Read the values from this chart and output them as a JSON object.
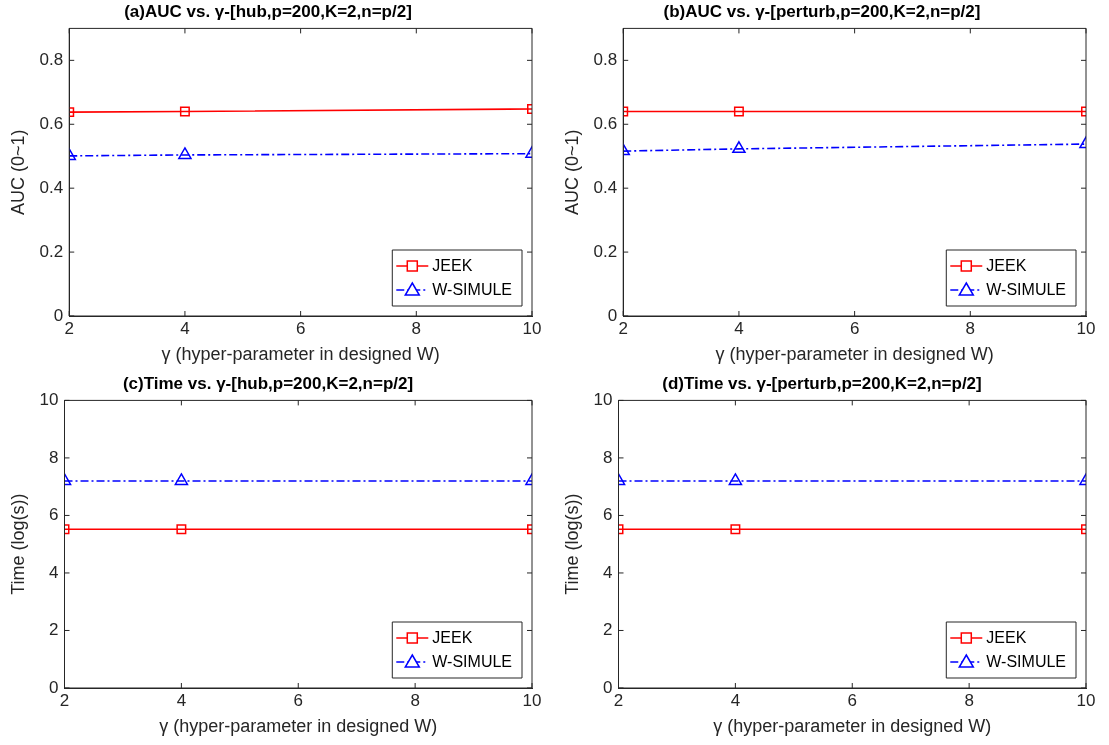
{
  "chart_data": [
    {
      "type": "line",
      "title": "(a)AUC vs. γ-[hub,p=200,K=2,n=p/2]",
      "xlabel": "γ (hyper-parameter in designed W)",
      "ylabel": "AUC (0~1)",
      "x": [
        2,
        4,
        10
      ],
      "xlim": [
        2,
        10
      ],
      "xticks": [
        2,
        4,
        6,
        8,
        10
      ],
      "ylim": [
        0,
        0.9
      ],
      "yticks": [
        0,
        0.2,
        0.4,
        0.6,
        0.8
      ],
      "grid": false,
      "legend": "bottom right",
      "series": [
        {
          "name": "JEEK",
          "color": "#ff0000",
          "marker": "square",
          "line_style": "solid",
          "values": [
            0.638,
            0.64,
            0.648
          ]
        },
        {
          "name": "W-SIMULE",
          "color": "#0000ff",
          "marker": "triangle",
          "line_style": "dashed",
          "values": [
            0.501,
            0.504,
            0.508
          ]
        }
      ]
    },
    {
      "type": "line",
      "title": "(b)AUC vs. γ-[perturb,p=200,K=2,n=p/2]",
      "xlabel": "γ (hyper-parameter in designed W)",
      "ylabel": "AUC (0~1)",
      "x": [
        2,
        4,
        10
      ],
      "xlim": [
        2,
        10
      ],
      "xticks": [
        2,
        4,
        6,
        8,
        10
      ],
      "ylim": [
        0,
        0.9
      ],
      "yticks": [
        0,
        0.2,
        0.4,
        0.6,
        0.8
      ],
      "grid": false,
      "legend": "bottom right",
      "series": [
        {
          "name": "JEEK",
          "color": "#ff0000",
          "marker": "square",
          "line_style": "solid",
          "values": [
            0.64,
            0.64,
            0.64
          ]
        },
        {
          "name": "W-SIMULE",
          "color": "#0000ff",
          "marker": "triangle",
          "line_style": "dashed",
          "values": [
            0.516,
            0.523,
            0.538
          ]
        }
      ]
    },
    {
      "type": "line",
      "title": "(c)Time vs. γ-[hub,p=200,K=2,n=p/2]",
      "xlabel": "γ (hyper-parameter in designed W)",
      "ylabel": "Time (log(s))",
      "x": [
        2,
        4,
        10
      ],
      "xlim": [
        2,
        10
      ],
      "xticks": [
        2,
        4,
        6,
        8,
        10
      ],
      "ylim": [
        0,
        10
      ],
      "yticks": [
        0,
        2,
        4,
        6,
        8,
        10
      ],
      "grid": false,
      "legend": "bottom right",
      "series": [
        {
          "name": "JEEK",
          "color": "#ff0000",
          "marker": "square",
          "line_style": "solid",
          "values": [
            5.52,
            5.52,
            5.52
          ]
        },
        {
          "name": "W-SIMULE",
          "color": "#0000ff",
          "marker": "triangle",
          "line_style": "dashed",
          "values": [
            7.2,
            7.2,
            7.2
          ]
        }
      ]
    },
    {
      "type": "line",
      "title": "(d)Time vs. γ-[perturb,p=200,K=2,n=p/2]",
      "xlabel": "γ (hyper-parameter in designed W)",
      "ylabel": "Time (log(s))",
      "x": [
        2,
        4,
        10
      ],
      "xlim": [
        2,
        10
      ],
      "xticks": [
        2,
        4,
        6,
        8,
        10
      ],
      "ylim": [
        0,
        10
      ],
      "yticks": [
        0,
        2,
        4,
        6,
        8,
        10
      ],
      "grid": false,
      "legend": "bottom right",
      "series": [
        {
          "name": "JEEK",
          "color": "#ff0000",
          "marker": "square",
          "line_style": "solid",
          "values": [
            5.52,
            5.52,
            5.52
          ]
        },
        {
          "name": "W-SIMULE",
          "color": "#0000ff",
          "marker": "triangle",
          "line_style": "dashed",
          "values": [
            7.2,
            7.2,
            7.2
          ]
        }
      ]
    }
  ]
}
